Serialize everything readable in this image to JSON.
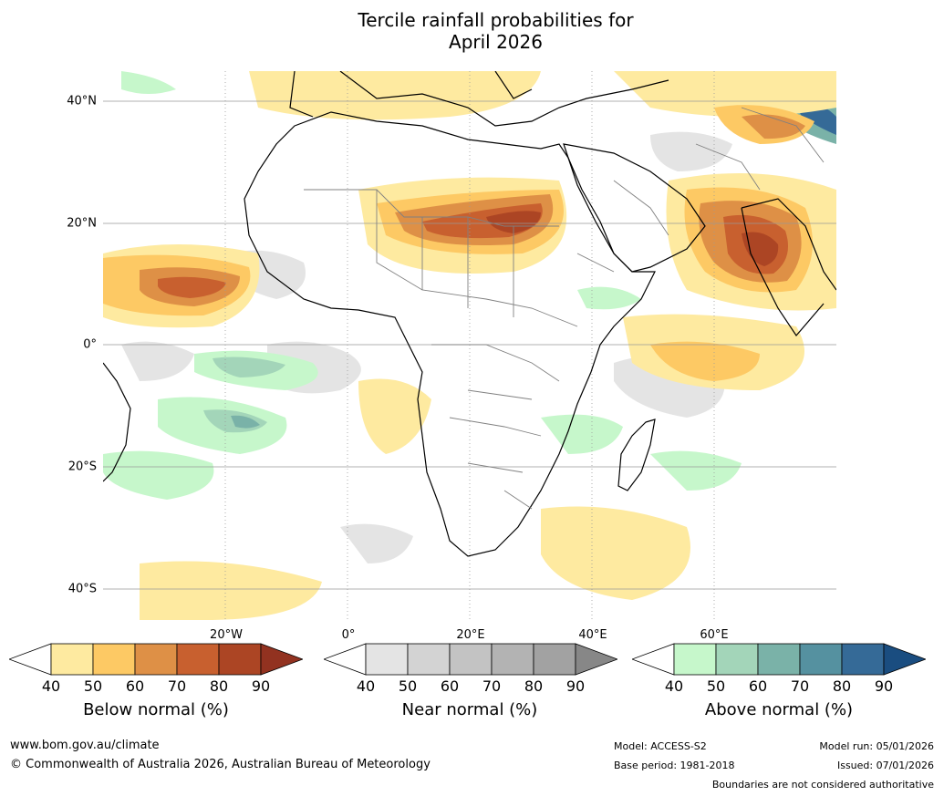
{
  "title": {
    "line1": "Tercile rainfall probabilities for",
    "line2": "April 2026"
  },
  "map": {
    "lat_labels": [
      "40°N",
      "20°N",
      "0°",
      "20°S",
      "40°S"
    ],
    "lon_labels": [
      "20°W",
      "0°",
      "20°E",
      "40°E",
      "60°E"
    ]
  },
  "colorbars": [
    {
      "label": "Below normal (%)",
      "ticks": [
        "40",
        "50",
        "60",
        "70",
        "80",
        "90"
      ],
      "colors": [
        "#ffffff",
        "#feeaa0",
        "#fdc964",
        "#de9046",
        "#c8602f",
        "#ac4524",
        "#923220"
      ]
    },
    {
      "label": "Near normal (%)",
      "ticks": [
        "40",
        "50",
        "60",
        "70",
        "80",
        "90"
      ],
      "colors": [
        "#ffffff",
        "#e4e4e4",
        "#d3d3d3",
        "#c3c3c3",
        "#b3b3b3",
        "#a2a2a2",
        "#878787"
      ]
    },
    {
      "label": "Above normal (%)",
      "ticks": [
        "40",
        "50",
        "60",
        "70",
        "80",
        "90"
      ],
      "colors": [
        "#ffffff",
        "#c6f7cb",
        "#a3d5b9",
        "#7ab2a8",
        "#5591a0",
        "#356a97",
        "#1a4d80"
      ]
    }
  ],
  "footer": {
    "url": "www.bom.gov.au/climate",
    "copyright": "© Commonwealth of Australia 2026, Australian Bureau of Meteorology",
    "model": "Model: ACCESS-S2",
    "base_period": "Base period: 1981-2018",
    "model_run": "Model run: 05/01/2026",
    "issued": "Issued: 07/01/2026",
    "disclaimer": "Boundaries are not considered authoritative"
  }
}
